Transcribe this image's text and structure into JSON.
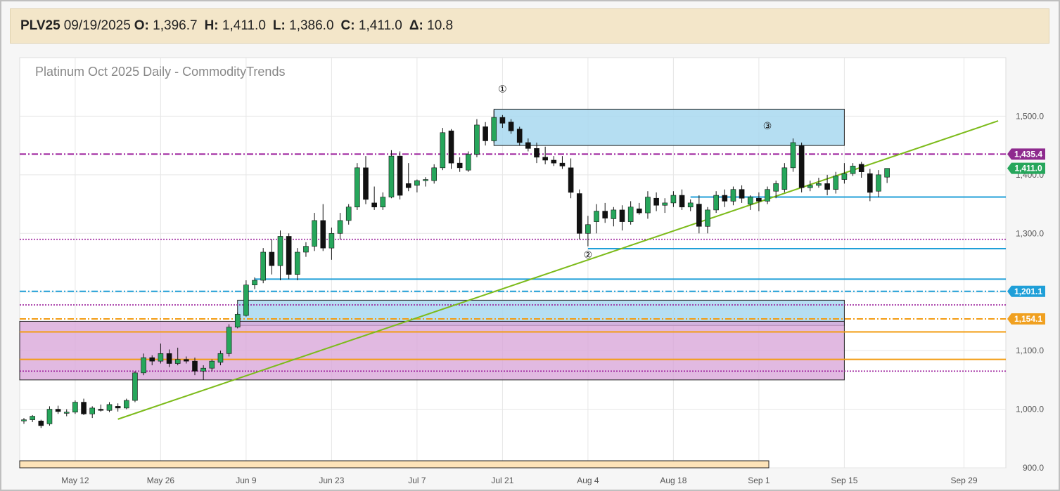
{
  "header": {
    "symbol": "PLV25",
    "date": "09/19/2025",
    "open_label": "O:",
    "open": "1,396.7",
    "high_label": "H:",
    "high": "1,411.0",
    "low_label": "L:",
    "low": "1,386.0",
    "close_label": "C:",
    "close": "1,411.0",
    "change_label": "Δ:",
    "change": "10.8"
  },
  "colors": {
    "up": "#26a65b",
    "down": "#111111",
    "trendline": "#7cbb1a",
    "resistance_zone": "#a8d8f0",
    "support_zone": "#d9a8d9",
    "blue_line": "#1f9fd8",
    "purple_line": "#9a1a9a",
    "orange_line": "#f39c12",
    "tag_purple": "#8e2a8e",
    "tag_green": "#26a65b",
    "tag_blue": "#1f9fd8",
    "tag_orange": "#f0a020"
  },
  "chart_data": {
    "type": "candlestick",
    "title": "Platinum Oct 2025 Daily - CommodityTrends",
    "y_ticks": [
      "1,500.0",
      "1,400.0",
      "1,300.0",
      "1,200.0",
      "1,100.0",
      "1,000.0",
      "900.0"
    ],
    "y_tick_values": [
      1500,
      1400,
      1300,
      1200,
      1100,
      1000,
      900
    ],
    "ylim": [
      900,
      1600
    ],
    "x_ticks": [
      {
        "label": "May 12",
        "index": 6
      },
      {
        "label": "May 26",
        "index": 16
      },
      {
        "label": "Jun 9",
        "index": 26
      },
      {
        "label": "Jun 23",
        "index": 36
      },
      {
        "label": "Jul 7",
        "index": 46
      },
      {
        "label": "Jul 21",
        "index": 56
      },
      {
        "label": "Aug 4",
        "index": 66
      },
      {
        "label": "Aug 18",
        "index": 76
      },
      {
        "label": "Sep 1",
        "index": 86
      },
      {
        "label": "Sep 15",
        "index": 96
      },
      {
        "label": "Sep 29",
        "index": 110
      }
    ],
    "candles": [
      [
        980,
        985,
        975,
        982
      ],
      [
        982,
        990,
        978,
        988
      ],
      [
        980,
        982,
        968,
        972
      ],
      [
        975,
        1005,
        972,
        1000
      ],
      [
        1000,
        1006,
        992,
        996
      ],
      [
        993,
        1000,
        988,
        995
      ],
      [
        995,
        1015,
        992,
        1012
      ],
      [
        1012,
        1018,
        990,
        992
      ],
      [
        992,
        1005,
        985,
        1002
      ],
      [
        1000,
        1008,
        996,
        998
      ],
      [
        998,
        1012,
        995,
        1008
      ],
      [
        1005,
        1010,
        996,
        1002
      ],
      [
        1002,
        1018,
        1000,
        1015
      ],
      [
        1015,
        1065,
        1012,
        1062
      ],
      [
        1062,
        1095,
        1058,
        1088
      ],
      [
        1088,
        1092,
        1075,
        1082
      ],
      [
        1082,
        1112,
        1078,
        1095
      ],
      [
        1095,
        1102,
        1072,
        1078
      ],
      [
        1078,
        1105,
        1075,
        1085
      ],
      [
        1085,
        1090,
        1078,
        1082
      ],
      [
        1082,
        1088,
        1058,
        1065
      ],
      [
        1065,
        1075,
        1050,
        1070
      ],
      [
        1070,
        1085,
        1065,
        1082
      ],
      [
        1080,
        1100,
        1075,
        1095
      ],
      [
        1095,
        1145,
        1090,
        1140
      ],
      [
        1140,
        1165,
        1138,
        1162
      ],
      [
        1160,
        1220,
        1158,
        1212
      ],
      [
        1212,
        1225,
        1205,
        1220
      ],
      [
        1220,
        1275,
        1215,
        1268
      ],
      [
        1268,
        1290,
        1230,
        1245
      ],
      [
        1245,
        1305,
        1220,
        1295
      ],
      [
        1295,
        1300,
        1222,
        1230
      ],
      [
        1230,
        1275,
        1220,
        1268
      ],
      [
        1268,
        1285,
        1260,
        1278
      ],
      [
        1278,
        1335,
        1270,
        1322
      ],
      [
        1322,
        1350,
        1270,
        1275
      ],
      [
        1275,
        1310,
        1255,
        1300
      ],
      [
        1300,
        1335,
        1290,
        1322
      ],
      [
        1322,
        1350,
        1315,
        1345
      ],
      [
        1345,
        1420,
        1340,
        1412
      ],
      [
        1412,
        1432,
        1350,
        1358
      ],
      [
        1352,
        1380,
        1340,
        1345
      ],
      [
        1345,
        1370,
        1340,
        1362
      ],
      [
        1362,
        1442,
        1360,
        1432
      ],
      [
        1432,
        1440,
        1358,
        1365
      ],
      [
        1385,
        1420,
        1372,
        1378
      ],
      [
        1382,
        1392,
        1370,
        1390
      ],
      [
        1390,
        1396,
        1380,
        1392
      ],
      [
        1390,
        1418,
        1385,
        1412
      ],
      [
        1412,
        1480,
        1408,
        1472
      ],
      [
        1475,
        1478,
        1410,
        1420
      ],
      [
        1420,
        1430,
        1405,
        1412
      ],
      [
        1408,
        1440,
        1405,
        1435
      ],
      [
        1435,
        1495,
        1430,
        1485
      ],
      [
        1482,
        1490,
        1450,
        1458
      ],
      [
        1458,
        1510,
        1455,
        1498
      ],
      [
        1498,
        1502,
        1480,
        1488
      ],
      [
        1490,
        1495,
        1470,
        1475
      ],
      [
        1478,
        1482,
        1450,
        1455
      ],
      [
        1455,
        1462,
        1440,
        1445
      ],
      [
        1445,
        1455,
        1420,
        1430
      ],
      [
        1430,
        1448,
        1418,
        1425
      ],
      [
        1425,
        1432,
        1415,
        1420
      ],
      [
        1420,
        1432,
        1410,
        1415
      ],
      [
        1412,
        1428,
        1360,
        1370
      ],
      [
        1368,
        1375,
        1290,
        1300
      ],
      [
        1300,
        1330,
        1278,
        1315
      ],
      [
        1320,
        1350,
        1300,
        1338
      ],
      [
        1338,
        1352,
        1318,
        1326
      ],
      [
        1325,
        1345,
        1312,
        1340
      ],
      [
        1340,
        1348,
        1305,
        1320
      ],
      [
        1320,
        1355,
        1315,
        1345
      ],
      [
        1342,
        1352,
        1332,
        1335
      ],
      [
        1335,
        1372,
        1325,
        1362
      ],
      [
        1360,
        1370,
        1338,
        1348
      ],
      [
        1348,
        1360,
        1335,
        1352
      ],
      [
        1352,
        1372,
        1345,
        1365
      ],
      [
        1365,
        1375,
        1340,
        1345
      ],
      [
        1345,
        1358,
        1338,
        1352
      ],
      [
        1350,
        1365,
        1300,
        1312
      ],
      [
        1312,
        1345,
        1300,
        1340
      ],
      [
        1340,
        1372,
        1335,
        1365
      ],
      [
        1365,
        1375,
        1345,
        1355
      ],
      [
        1355,
        1380,
        1348,
        1375
      ],
      [
        1375,
        1382,
        1352,
        1360
      ],
      [
        1350,
        1365,
        1340,
        1362
      ],
      [
        1360,
        1370,
        1338,
        1355
      ],
      [
        1355,
        1380,
        1350,
        1375
      ],
      [
        1372,
        1390,
        1360,
        1385
      ],
      [
        1375,
        1420,
        1370,
        1412
      ],
      [
        1412,
        1462,
        1405,
        1455
      ],
      [
        1450,
        1455,
        1370,
        1378
      ],
      [
        1378,
        1390,
        1372,
        1382
      ],
      [
        1382,
        1395,
        1378,
        1385
      ],
      [
        1385,
        1400,
        1365,
        1375
      ],
      [
        1375,
        1405,
        1368,
        1398
      ],
      [
        1392,
        1420,
        1385,
        1402
      ],
      [
        1402,
        1420,
        1398,
        1415
      ],
      [
        1418,
        1422,
        1395,
        1405
      ],
      [
        1402,
        1410,
        1355,
        1370
      ],
      [
        1372,
        1408,
        1362,
        1400
      ],
      [
        1396,
        1411,
        1386,
        1411
      ]
    ],
    "horizontal_levels": [
      {
        "price": 1435.4,
        "style": "dashdot",
        "color": "purple",
        "label": "1,435.4",
        "tag": "purple"
      },
      {
        "price": 1411.0,
        "style": "none",
        "color": "green",
        "label": "1,411.0",
        "tag": "green"
      },
      {
        "price": 1201.1,
        "style": "dashdot",
        "color": "blue",
        "label": "1,201.1",
        "tag": "blue"
      },
      {
        "price": 1154.1,
        "style": "dashdot",
        "color": "orange",
        "label": "1,154.1",
        "tag": "orange"
      },
      {
        "price": 1290,
        "style": "dotted",
        "color": "purple",
        "label": "",
        "tag": ""
      },
      {
        "price": 1178,
        "style": "dotted",
        "color": "purple",
        "label": "",
        "tag": ""
      },
      {
        "price": 1065,
        "style": "dotted",
        "color": "purple",
        "label": "",
        "tag": ""
      },
      {
        "price": 1132,
        "style": "solid",
        "color": "orange",
        "label": "",
        "tag": ""
      },
      {
        "price": 1085,
        "style": "solid",
        "color": "orange",
        "label": "",
        "tag": ""
      }
    ],
    "partial_levels": [
      {
        "price": 1362,
        "from_index": 78,
        "color": "blue"
      },
      {
        "price": 1274,
        "from_index": 66,
        "color": "blue"
      },
      {
        "price": 1222,
        "from_index": 27,
        "color": "blue"
      }
    ],
    "zones": [
      {
        "from_index": 55,
        "to_index": 96,
        "low": 1450,
        "high": 1512,
        "color": "resistance"
      },
      {
        "from_index": 25,
        "to_index": 96,
        "low": 1143,
        "high": 1186,
        "color": "resistance"
      },
      {
        "from_index": -3,
        "to_index": 96,
        "low": 1050,
        "high": 1150,
        "color": "support"
      }
    ],
    "trendline": {
      "from_index": 11,
      "from_price": 983,
      "to_index": 114,
      "to_price": 1492
    },
    "annotations": [
      {
        "label": "①",
        "index": 56,
        "price": 1545
      },
      {
        "label": "②",
        "index": 66,
        "price": 1262
      },
      {
        "label": "③",
        "index": 87,
        "price": 1482
      }
    ],
    "grid": true
  }
}
